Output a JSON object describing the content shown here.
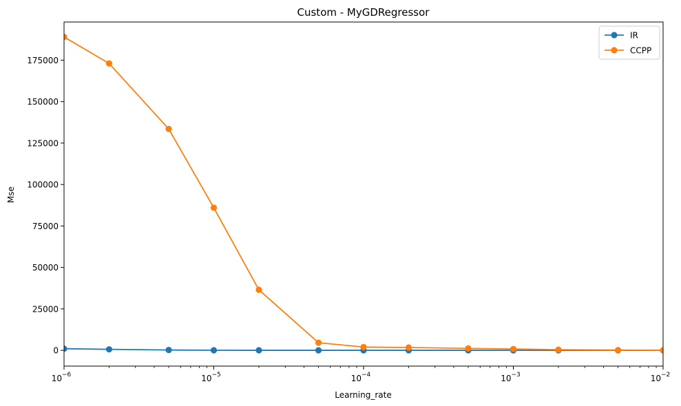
{
  "chart_data": {
    "type": "line",
    "title": "Custom - MyGDRegressor",
    "xlabel": "Learning_rate",
    "ylabel": "Mse",
    "xscale": "log",
    "xlim": [
      1e-06,
      0.01
    ],
    "ylim": [
      -9500,
      198000
    ],
    "x": [
      1e-06,
      2e-06,
      5e-06,
      1e-05,
      2e-05,
      5e-05,
      0.0001,
      0.0002,
      0.0005,
      0.001,
      0.002,
      0.005,
      0.01
    ],
    "series": [
      {
        "name": "IR",
        "color": "#1f77b4",
        "marker": "circle",
        "values": [
          1000,
          600,
          200,
          50,
          30,
          20,
          15,
          12,
          10,
          8,
          6,
          5,
          4
        ]
      },
      {
        "name": "CCPP",
        "color": "#ff7f0e",
        "marker": "circle",
        "values": [
          189000,
          173000,
          133500,
          86000,
          36500,
          4600,
          2000,
          1700,
          1200,
          800,
          400,
          150,
          60
        ]
      }
    ],
    "x_ticks": [
      {
        "value": 1e-06,
        "base": "10",
        "exp": "−6"
      },
      {
        "value": 1e-05,
        "base": "10",
        "exp": "−5"
      },
      {
        "value": 0.0001,
        "base": "10",
        "exp": "−4"
      },
      {
        "value": 0.001,
        "base": "10",
        "exp": "−3"
      },
      {
        "value": 0.01,
        "base": "10",
        "exp": "−2"
      }
    ],
    "y_ticks": [
      0,
      25000,
      50000,
      75000,
      100000,
      125000,
      150000,
      175000
    ],
    "y_tick_labels": [
      "0",
      "25000",
      "50000",
      "75000",
      "100000",
      "125000",
      "150000",
      "175000"
    ],
    "legend_position": "top-right",
    "grid": false
  }
}
